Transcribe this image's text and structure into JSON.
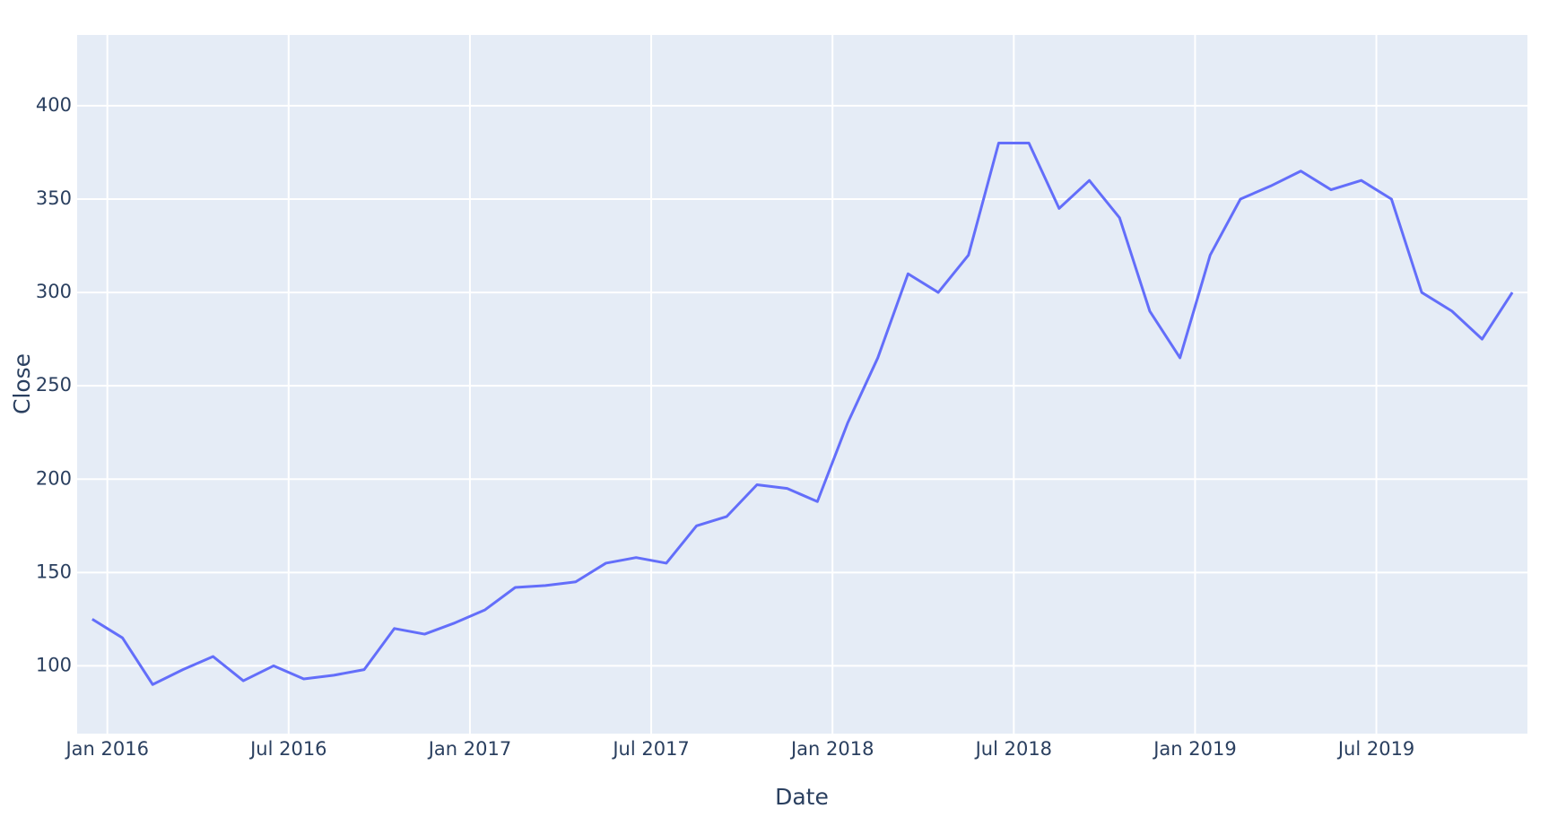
{
  "chart_data": {
    "type": "line",
    "x_label": "Date",
    "y_label": "Close",
    "x": [
      "2015-12",
      "2016-01",
      "2016-02",
      "2016-03",
      "2016-04",
      "2016-05",
      "2016-06",
      "2016-07",
      "2016-08",
      "2016-09",
      "2016-10",
      "2016-11",
      "2016-12",
      "2017-01",
      "2017-02",
      "2017-03",
      "2017-04",
      "2017-05",
      "2017-06",
      "2017-07",
      "2017-08",
      "2017-09",
      "2017-10",
      "2017-11",
      "2017-12",
      "2018-01",
      "2018-02",
      "2018-03",
      "2018-04",
      "2018-05",
      "2018-06",
      "2018-07",
      "2018-08",
      "2018-09",
      "2018-10",
      "2018-11",
      "2018-12",
      "2019-01",
      "2019-02",
      "2019-03",
      "2019-04",
      "2019-05",
      "2019-06",
      "2019-07",
      "2019-08",
      "2019-09",
      "2019-10",
      "2019-11"
    ],
    "series": [
      {
        "name": "Close",
        "color": "#636efa",
        "values": [
          125,
          115,
          90,
          98,
          105,
          92,
          100,
          93,
          95,
          98,
          120,
          117,
          123,
          130,
          142,
          143,
          145,
          155,
          158,
          155,
          175,
          180,
          197,
          195,
          188,
          230,
          265,
          310,
          300,
          320,
          380,
          380,
          345,
          360,
          340,
          290,
          265,
          320,
          350,
          357,
          365,
          355,
          360,
          350,
          300,
          290,
          275,
          300
        ]
      }
    ],
    "xlim": [
      "2015-12",
      "2019-12"
    ],
    "xticks": [
      {
        "value": "2016-01",
        "label": "Jan 2016"
      },
      {
        "value": "2016-07",
        "label": "Jul 2016"
      },
      {
        "value": "2017-01",
        "label": "Jan 2017"
      },
      {
        "value": "2017-07",
        "label": "Jul 2017"
      },
      {
        "value": "2018-01",
        "label": "Jan 2018"
      },
      {
        "value": "2018-07",
        "label": "Jul 2018"
      },
      {
        "value": "2019-01",
        "label": "Jan 2019"
      },
      {
        "value": "2019-07",
        "label": "Jul 2019"
      }
    ],
    "ylim": [
      63.7,
      437.9
    ],
    "yticks": [
      100,
      150,
      200,
      250,
      300,
      350,
      400
    ],
    "grid": true,
    "background": "#e5ecf6"
  }
}
